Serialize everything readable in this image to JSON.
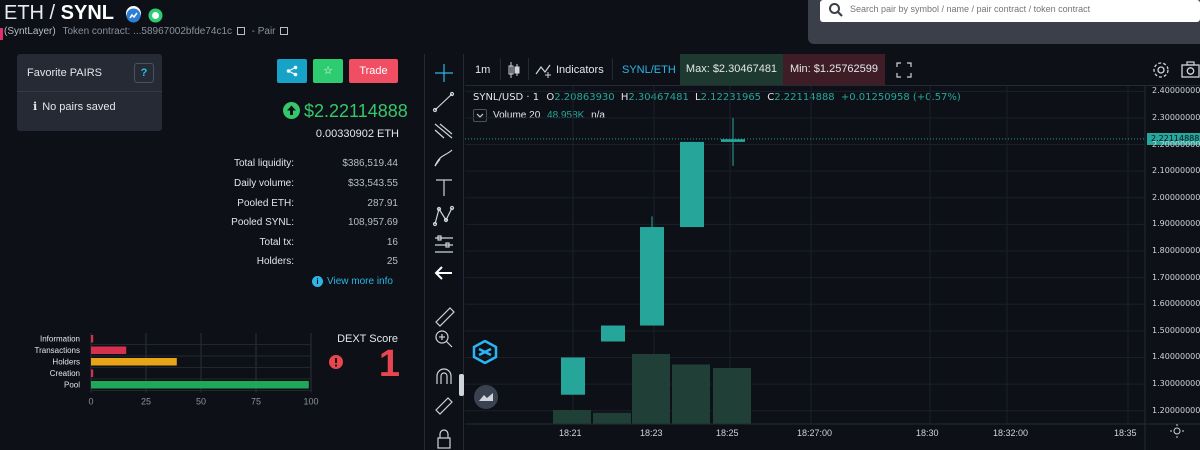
{
  "header": {
    "quote": "ETH",
    "sep": " / ",
    "base": "SYNL",
    "name": "(SyntLayer)",
    "token_contract_label": "Token contract:",
    "token_contract_value": "...58967002bfde74c1c",
    "pair_label": "- Pair"
  },
  "search": {
    "placeholder": "Search pair by symbol / name / pair contract / token contract"
  },
  "favorites": {
    "title": "Favorite PAIRS",
    "help": "?",
    "empty": "No pairs saved"
  },
  "actions": {
    "trade_label": "Trade"
  },
  "price": {
    "usd": "$2.22114888",
    "eth": "0.00330902 ETH"
  },
  "stats": [
    {
      "label": "Total liquidity:",
      "value": "$386,519.44"
    },
    {
      "label": "Daily volume:",
      "value": "$33,543.55"
    },
    {
      "label": "Pooled ETH:",
      "value": "287.91"
    },
    {
      "label": "Pooled SYNL:",
      "value": "108,957.69"
    },
    {
      "label": "Total tx:",
      "value": "16"
    },
    {
      "label": "Holders:",
      "value": "25"
    }
  ],
  "view_more": "View more info",
  "dext": {
    "label": "DEXT Score",
    "value": "1",
    "categories": [
      "Information",
      "Transactions",
      "Holders",
      "Creation",
      "Pool"
    ],
    "values": [
      1,
      16,
      39,
      1,
      99
    ],
    "colors": [
      "#d6304f",
      "#d6304f",
      "#e8a317",
      "#d6304f",
      "#1fa85a"
    ],
    "ticks": [
      "0",
      "25",
      "50",
      "75",
      "100"
    ]
  },
  "toolbar": {
    "interval": "1m",
    "indicators": "Indicators",
    "pair": "SYNL/ETH",
    "max": "Max: $2.30467481",
    "min": "Min: $1.25762599"
  },
  "legend": {
    "symbol": "SYNL/USD · 1",
    "o_label": "O",
    "o": "2.20863930",
    "h_label": "H",
    "h": "2.30467481",
    "l_label": "L",
    "l": "2.12231965",
    "c_label": "C",
    "c": "2.22114888",
    "change": "+0.01250958 (+0.57%)",
    "volume_label": "Volume 20",
    "volume_value": "48.958K",
    "volume_ma": "n/a"
  },
  "chart_data": {
    "type": "candlestick",
    "symbol": "SYNL/USD",
    "interval": "1",
    "y_ticks": [
      "2.40000000",
      "2.30000000",
      "2.20000000",
      "2.10000000",
      "2.00000000",
      "1.90000000",
      "1.80000000",
      "1.70000000",
      "1.60000000",
      "1.50000000",
      "1.40000000",
      "1.30000000",
      "1.20000000"
    ],
    "ylim": [
      1.15,
      2.42
    ],
    "last_price": "2.22114888",
    "x_ticks": [
      "18:21",
      "18:23",
      "18:25",
      "18:27:00",
      "18:30",
      "18:32:00",
      "18:35"
    ],
    "candles": [
      {
        "open": 1.26,
        "high": 1.4,
        "low": 1.26,
        "close": 1.4
      },
      {
        "open": 1.46,
        "high": 1.52,
        "low": 1.46,
        "close": 1.52
      },
      {
        "open": 1.52,
        "high": 1.93,
        "low": 1.52,
        "close": 1.89
      },
      {
        "open": 1.89,
        "high": 2.21,
        "low": 1.89,
        "close": 2.21
      },
      {
        "open": 2.21,
        "high": 2.3,
        "low": 2.12,
        "close": 2.22
      }
    ],
    "volume_relative": [
      0.2,
      0.16,
      1.0,
      0.85,
      0.8
    ]
  },
  "colors": {
    "up": "#26a69a",
    "volume": "#1f3f37",
    "green": "#35c76b",
    "red": "#e8454e"
  }
}
